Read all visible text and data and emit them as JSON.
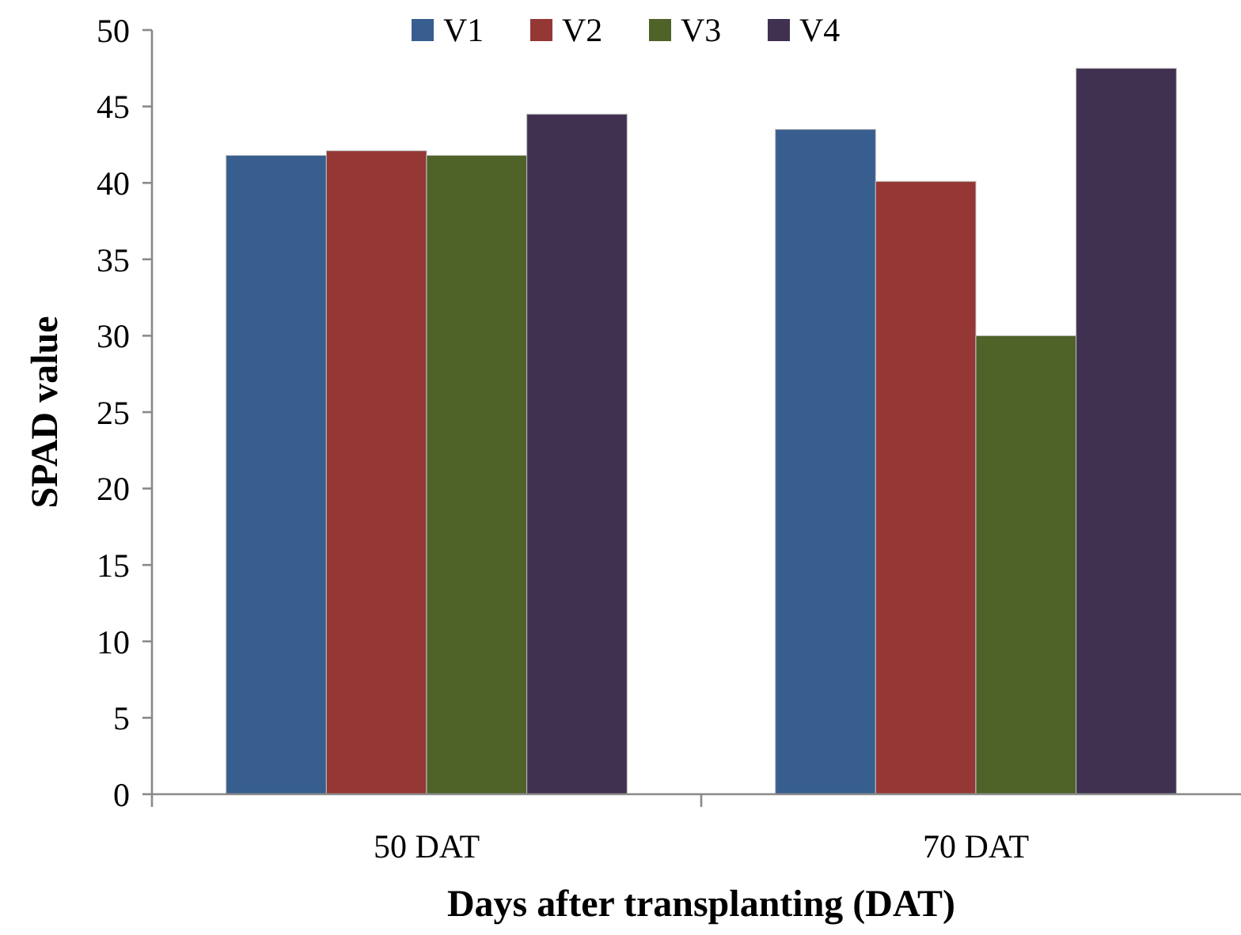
{
  "chart_data": {
    "type": "bar",
    "xlabel": "Days after transplanting (DAT)",
    "ylabel": "SPAD value",
    "categories": [
      "50 DAT",
      "70 DAT"
    ],
    "series": [
      {
        "name": "V1",
        "color": "#375e8f",
        "values": [
          41.8,
          43.5
        ]
      },
      {
        "name": "V2",
        "color": "#953735",
        "values": [
          42.1,
          40.1
        ]
      },
      {
        "name": "V3",
        "color": "#4f6228",
        "values": [
          41.8,
          30.0
        ]
      },
      {
        "name": "V4",
        "color": "#403151",
        "values": [
          44.5,
          47.5
        ]
      }
    ],
    "ylim": [
      0,
      50
    ],
    "yticks": [
      0,
      5,
      10,
      15,
      20,
      25,
      30,
      35,
      40,
      45,
      50
    ],
    "grid": false,
    "legend": "top"
  }
}
